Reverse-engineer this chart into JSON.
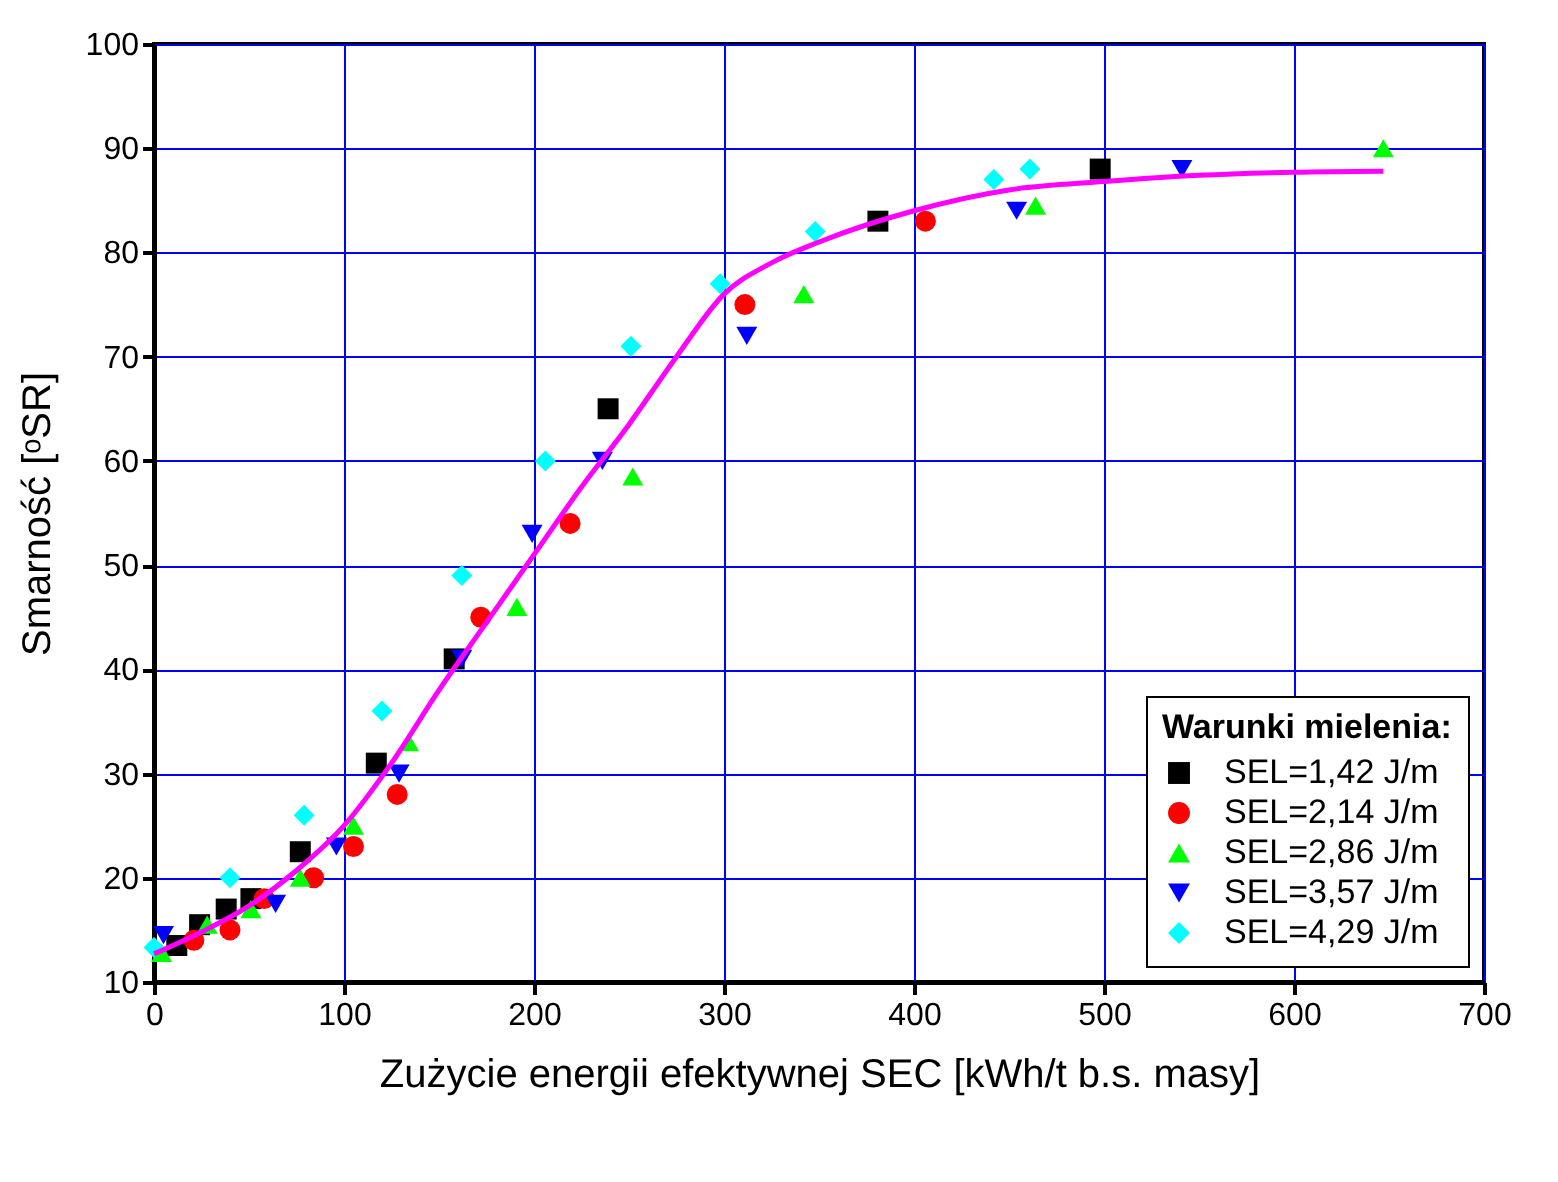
{
  "chart_data": {
    "type": "scatter",
    "xlabel": "Zużycie energii efektywnej SEC [kWh/t b.s. masy]",
    "ylabel": "Smarność [ᵒSR]",
    "legend_title": "Warunki mielenia:",
    "legend": "bottom right",
    "grid": true,
    "xlim": [
      0,
      700
    ],
    "xticks": [
      0,
      100,
      200,
      300,
      400,
      500,
      600,
      700
    ],
    "ylim": [
      10,
      100
    ],
    "yticks": [
      10,
      20,
      30,
      40,
      50,
      60,
      70,
      80,
      90,
      100
    ],
    "series": [
      {
        "name": "SEL=1,42 J/m",
        "color": "#000000",
        "marker": "square",
        "x": [
          12,
          24,
          38,
          51,
          77,
          117,
          158,
          239,
          381,
          498
        ],
        "values": [
          13.5,
          15.5,
          17,
          18,
          22.5,
          31,
          41,
          65,
          83,
          88
        ]
      },
      {
        "name": "SEL=2,14 J/m",
        "color": "#ff0000",
        "marker": "circle",
        "x": [
          21,
          40,
          58,
          84,
          105,
          128,
          172,
          219,
          311,
          406
        ],
        "values": [
          14,
          15,
          18,
          20,
          23,
          28,
          45,
          54,
          75,
          83
        ]
      },
      {
        "name": "SEL=2,86 J/m",
        "color": "#00ff00",
        "marker": "triangle",
        "x": [
          4,
          28,
          51,
          77,
          105,
          134,
          191,
          252,
          342,
          464,
          647
        ],
        "values": [
          12.8,
          15.5,
          17,
          20,
          25,
          33,
          46,
          58.5,
          76,
          84.5,
          90
        ]
      },
      {
        "name": "SEL=3,57 J/m",
        "color": "#0000ff",
        "marker": "triangle-down",
        "x": [
          5,
          64,
          96,
          129,
          162,
          199,
          236,
          312,
          454,
          541
        ],
        "values": [
          14.5,
          17.5,
          23,
          30,
          41,
          53,
          60,
          72,
          84,
          88
        ]
      },
      {
        "name": "SEL=4,29 J/m",
        "color": "#00ffff",
        "marker": "diamond",
        "x": [
          0,
          40,
          79,
          120,
          162,
          206,
          251,
          298,
          348,
          442,
          461
        ],
        "values": [
          13.3,
          20,
          26,
          36,
          49,
          60,
          71,
          77,
          82,
          87,
          88
        ]
      },
      {
        "type": "line",
        "color": "#ff00ff",
        "marker": "none",
        "x": [
          0,
          25,
          50,
          75,
          100,
          125,
          150,
          175,
          200,
          225,
          250,
          275,
          300,
          325,
          350,
          400,
          450,
          500,
          550,
          600,
          647
        ],
        "values": [
          12.7,
          14.8,
          17.3,
          20.7,
          25,
          31,
          38,
          44.5,
          51,
          57.5,
          63.5,
          70,
          76,
          79,
          81,
          84,
          86,
          86.8,
          87.4,
          87.7,
          87.8
        ]
      }
    ]
  }
}
